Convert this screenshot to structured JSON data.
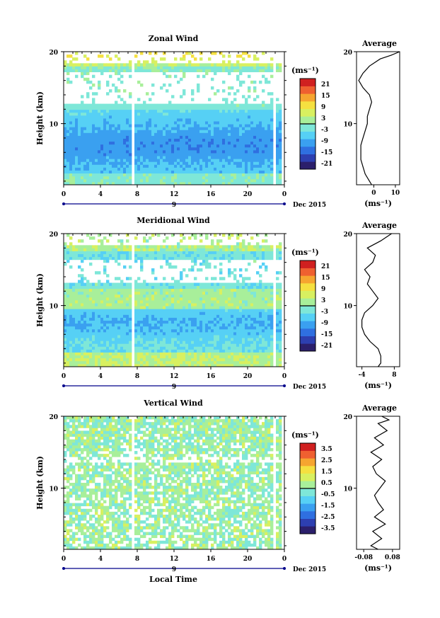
{
  "panels": [
    {
      "title": "Zonal Wind",
      "ylabel": "Height (km)",
      "yticks": [
        "20",
        "10"
      ],
      "xticks": [
        "0",
        "4",
        "8",
        "12",
        "16",
        "20",
        "0"
      ],
      "date_day": "9",
      "date_label": "Dec 2015",
      "unit": "(ms⁻¹)",
      "colorbar_ticks": [
        "21",
        "15",
        "9",
        "3",
        "-3",
        "-9",
        "-15",
        "-21"
      ],
      "avg_title": "Average",
      "avg_xticks": [
        "0",
        "10"
      ],
      "avg_yticks": [
        "20",
        "10"
      ],
      "avg_unit": "(ms⁻¹)"
    },
    {
      "title": "Meridional Wind",
      "ylabel": "Height (km)",
      "yticks": [
        "20",
        "10"
      ],
      "xticks": [
        "0",
        "4",
        "8",
        "12",
        "16",
        "20",
        "0"
      ],
      "date_day": "9",
      "date_label": "Dec 2015",
      "unit": "(ms⁻¹)",
      "colorbar_ticks": [
        "21",
        "15",
        "9",
        "3",
        "-3",
        "-9",
        "-15",
        "-21"
      ],
      "avg_title": "Average",
      "avg_xticks": [
        "-4",
        "8"
      ],
      "avg_yticks": [
        "20",
        "10"
      ],
      "avg_unit": "(ms⁻¹)"
    },
    {
      "title": "Vertical Wind",
      "ylabel": "Height (km)",
      "yticks": [
        "20",
        "10"
      ],
      "xticks": [
        "0",
        "4",
        "8",
        "12",
        "16",
        "20",
        "0"
      ],
      "date_day": "9",
      "date_label": "Dec 2015",
      "unit": "(ms⁻¹)",
      "colorbar_ticks": [
        "3.5",
        "2.5",
        "1.5",
        "0.5",
        "-0.5",
        "-1.5",
        "-2.5",
        "-3.5"
      ],
      "avg_title": "Average",
      "avg_xticks": [
        "-0.08",
        "0.08"
      ],
      "avg_yticks": [
        "20",
        "10"
      ],
      "avg_unit": "(ms⁻¹)"
    }
  ],
  "xlabel": "Local Time",
  "colors": {
    "scale": [
      "#2b1f6b",
      "#2d3fb0",
      "#2f6fe0",
      "#3aa0f0",
      "#56d0f5",
      "#7ee7d8",
      "#a8ef9a",
      "#d8f060",
      "#f5e040",
      "#f6a530",
      "#ef6030",
      "#d02020"
    ],
    "axis": "#000000",
    "timeline": "#00008b"
  },
  "chart_data": [
    {
      "type": "heatmap",
      "title": "Zonal Wind",
      "xlabel": "",
      "ylabel": "Height (km)",
      "xlim": [
        0,
        24
      ],
      "ylim": [
        1.5,
        20
      ],
      "clim": [
        -24,
        24
      ],
      "profile": {
        "title": "Average",
        "xlim": [
          -8,
          12
        ],
        "height": [
          1.5,
          2,
          3,
          4,
          5,
          6,
          7,
          8,
          9,
          10,
          11,
          12,
          13,
          14,
          15,
          16,
          17,
          18,
          19,
          19.5,
          20
        ],
        "value": [
          -1,
          -2,
          -4,
          -5,
          -6,
          -6,
          -6,
          -5,
          -4,
          -3,
          -3,
          -2,
          -1,
          -2,
          -5,
          -7,
          -5,
          -2,
          3,
          8,
          12
        ]
      }
    },
    {
      "type": "heatmap",
      "title": "Meridional Wind",
      "xlabel": "",
      "ylabel": "Height (km)",
      "xlim": [
        0,
        24
      ],
      "ylim": [
        1.5,
        20
      ],
      "clim": [
        -24,
        24
      ],
      "profile": {
        "title": "Average",
        "xlim": [
          -6,
          10
        ],
        "height": [
          1.5,
          2,
          3,
          4,
          5,
          6,
          7,
          8,
          9,
          10,
          11,
          12,
          13,
          14,
          15,
          16,
          17,
          18,
          19,
          19.5,
          20
        ],
        "value": [
          2,
          3,
          3,
          2,
          -1,
          -3,
          -4,
          -4,
          -3,
          0,
          2,
          0,
          -2,
          -1,
          -3,
          0,
          1,
          -2,
          3,
          5,
          7
        ]
      }
    },
    {
      "type": "heatmap",
      "title": "Vertical Wind",
      "xlabel": "Local Time",
      "ylabel": "Height (km)",
      "xlim": [
        0,
        24
      ],
      "ylim": [
        1.5,
        20
      ],
      "clim": [
        -4,
        4
      ],
      "profile": {
        "title": "Average",
        "xlim": [
          -0.12,
          0.12
        ],
        "height": [
          1.5,
          2,
          3,
          4,
          5,
          6,
          7,
          8,
          9,
          10,
          11,
          12,
          13,
          14,
          15,
          16,
          17,
          18,
          19,
          19.5,
          20
        ],
        "value": [
          0.0,
          -0.04,
          0.02,
          -0.03,
          0.04,
          -0.02,
          0.03,
          0.0,
          -0.02,
          0.01,
          0.04,
          -0.01,
          -0.03,
          0.02,
          -0.04,
          0.03,
          -0.02,
          0.05,
          0.0,
          0.06,
          0.02
        ]
      }
    }
  ]
}
